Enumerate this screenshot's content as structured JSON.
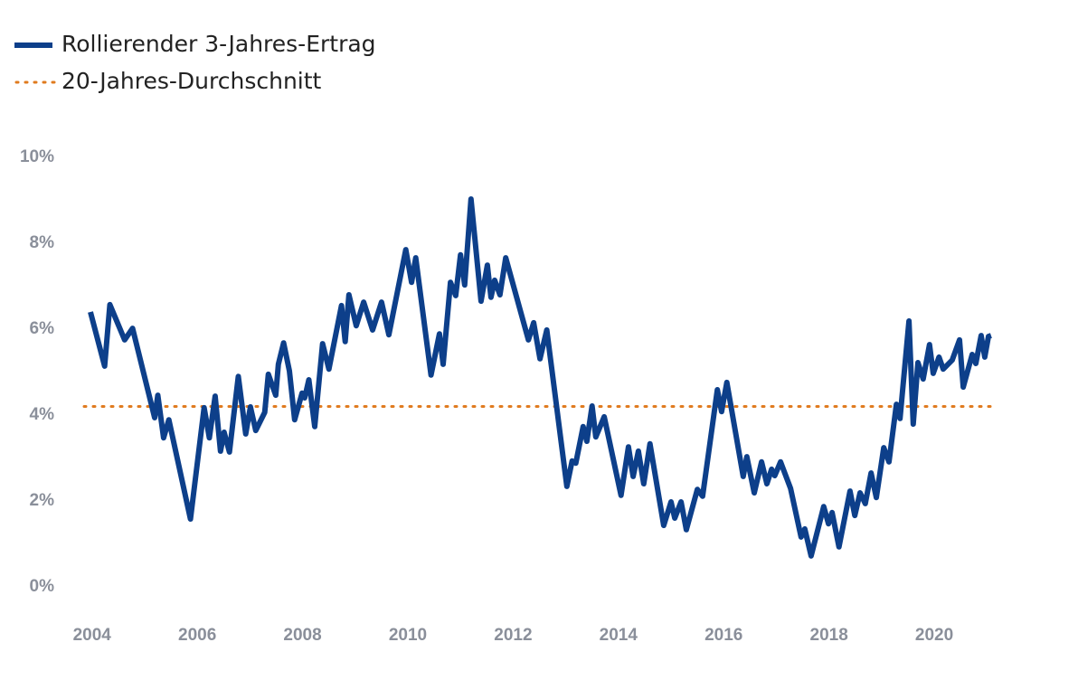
{
  "chart_data": {
    "type": "line",
    "series": [
      {
        "name": "Rollierender 3-Jahres-Ertrag",
        "color": "#0d3f8a",
        "x": [
          2003.97,
          2004.24,
          2004.34,
          2004.62,
          2004.77,
          2005.19,
          2005.25,
          2005.36,
          2005.46,
          2005.87,
          2006.13,
          2006.23,
          2006.34,
          2006.44,
          2006.51,
          2006.61,
          2006.78,
          2006.92,
          2007.01,
          2007.11,
          2007.28,
          2007.35,
          2007.49,
          2007.54,
          2007.64,
          2007.75,
          2007.85,
          2007.99,
          2008.04,
          2008.12,
          2008.23,
          2008.38,
          2008.5,
          2008.74,
          2008.81,
          2008.88,
          2009.02,
          2009.16,
          2009.33,
          2009.5,
          2009.64,
          2009.96,
          2010.07,
          2010.15,
          2010.44,
          2010.6,
          2010.67,
          2010.81,
          2010.91,
          2011.0,
          2011.08,
          2011.2,
          2011.39,
          2011.51,
          2011.58,
          2011.65,
          2011.75,
          2011.86,
          2012.29,
          2012.39,
          2012.51,
          2012.64,
          2013.02,
          2013.12,
          2013.19,
          2013.33,
          2013.4,
          2013.5,
          2013.57,
          2013.73,
          2014.05,
          2014.19,
          2014.28,
          2014.38,
          2014.48,
          2014.6,
          2014.86,
          2015.0,
          2015.07,
          2015.19,
          2015.29,
          2015.5,
          2015.6,
          2015.88,
          2015.96,
          2016.06,
          2016.37,
          2016.44,
          2016.58,
          2016.72,
          2016.82,
          2016.91,
          2016.97,
          2017.08,
          2017.27,
          2017.47,
          2017.54,
          2017.66,
          2017.9,
          2017.99,
          2018.06,
          2018.19,
          2018.4,
          2018.49,
          2018.59,
          2018.69,
          2018.8,
          2018.9,
          2019.04,
          2019.14,
          2019.28,
          2019.35,
          2019.52,
          2019.6,
          2019.69,
          2019.79,
          2019.91,
          2019.98,
          2020.09,
          2020.17,
          2020.34,
          2020.48,
          2020.55,
          2020.72,
          2020.79,
          2020.89,
          2020.96,
          2021.03,
          2021.08
        ],
        "values": [
          6.4,
          5.14,
          6.57,
          5.75,
          6.02,
          3.94,
          4.46,
          3.47,
          3.89,
          1.58,
          4.17,
          3.47,
          4.44,
          3.16,
          3.6,
          3.14,
          4.9,
          3.56,
          4.19,
          3.64,
          4.06,
          4.95,
          4.46,
          5.18,
          5.68,
          5.03,
          3.89,
          4.51,
          4.4,
          4.82,
          3.73,
          5.66,
          5.07,
          6.55,
          5.71,
          6.8,
          6.08,
          6.63,
          5.98,
          6.63,
          5.87,
          7.85,
          7.09,
          7.66,
          4.93,
          5.89,
          5.18,
          7.09,
          6.78,
          7.73,
          7.03,
          9.03,
          6.65,
          7.49,
          6.74,
          7.14,
          6.8,
          7.66,
          5.75,
          6.15,
          5.31,
          5.98,
          2.34,
          2.93,
          2.88,
          3.73,
          3.39,
          4.21,
          3.49,
          3.96,
          2.13,
          3.26,
          2.57,
          3.16,
          2.4,
          3.33,
          1.43,
          1.98,
          1.6,
          1.98,
          1.33,
          2.27,
          2.11,
          4.59,
          4.08,
          4.76,
          2.57,
          3.03,
          2.19,
          2.91,
          2.4,
          2.74,
          2.59,
          2.91,
          2.29,
          1.16,
          1.35,
          0.72,
          1.87,
          1.47,
          1.73,
          0.93,
          2.23,
          1.66,
          2.19,
          1.94,
          2.65,
          2.08,
          3.24,
          2.91,
          4.25,
          3.92,
          6.19,
          3.79,
          5.22,
          4.84,
          5.64,
          4.97,
          5.35,
          5.07,
          5.28,
          5.75,
          4.65,
          5.41,
          5.2,
          5.85,
          5.35,
          5.83,
          5.85
        ]
      }
    ],
    "reference_line": {
      "name": "20-Jahres-Durchschnitt",
      "value": 4.2,
      "color": "#e07b1f"
    },
    "xlim": [
      2003.85,
      2021.15
    ],
    "xticks": [
      2004,
      2006,
      2008,
      2010,
      2012,
      2014,
      2016,
      2018,
      2020
    ],
    "ylim": [
      0,
      10
    ],
    "yticks": [
      {
        "value": 0,
        "label": "0%"
      },
      {
        "value": 2,
        "label": "2%"
      },
      {
        "value": 4,
        "label": "4%"
      },
      {
        "value": 6,
        "label": "6%"
      },
      {
        "value": 8,
        "label": "8%"
      },
      {
        "value": 10,
        "label": "10%"
      }
    ],
    "grid": false
  }
}
